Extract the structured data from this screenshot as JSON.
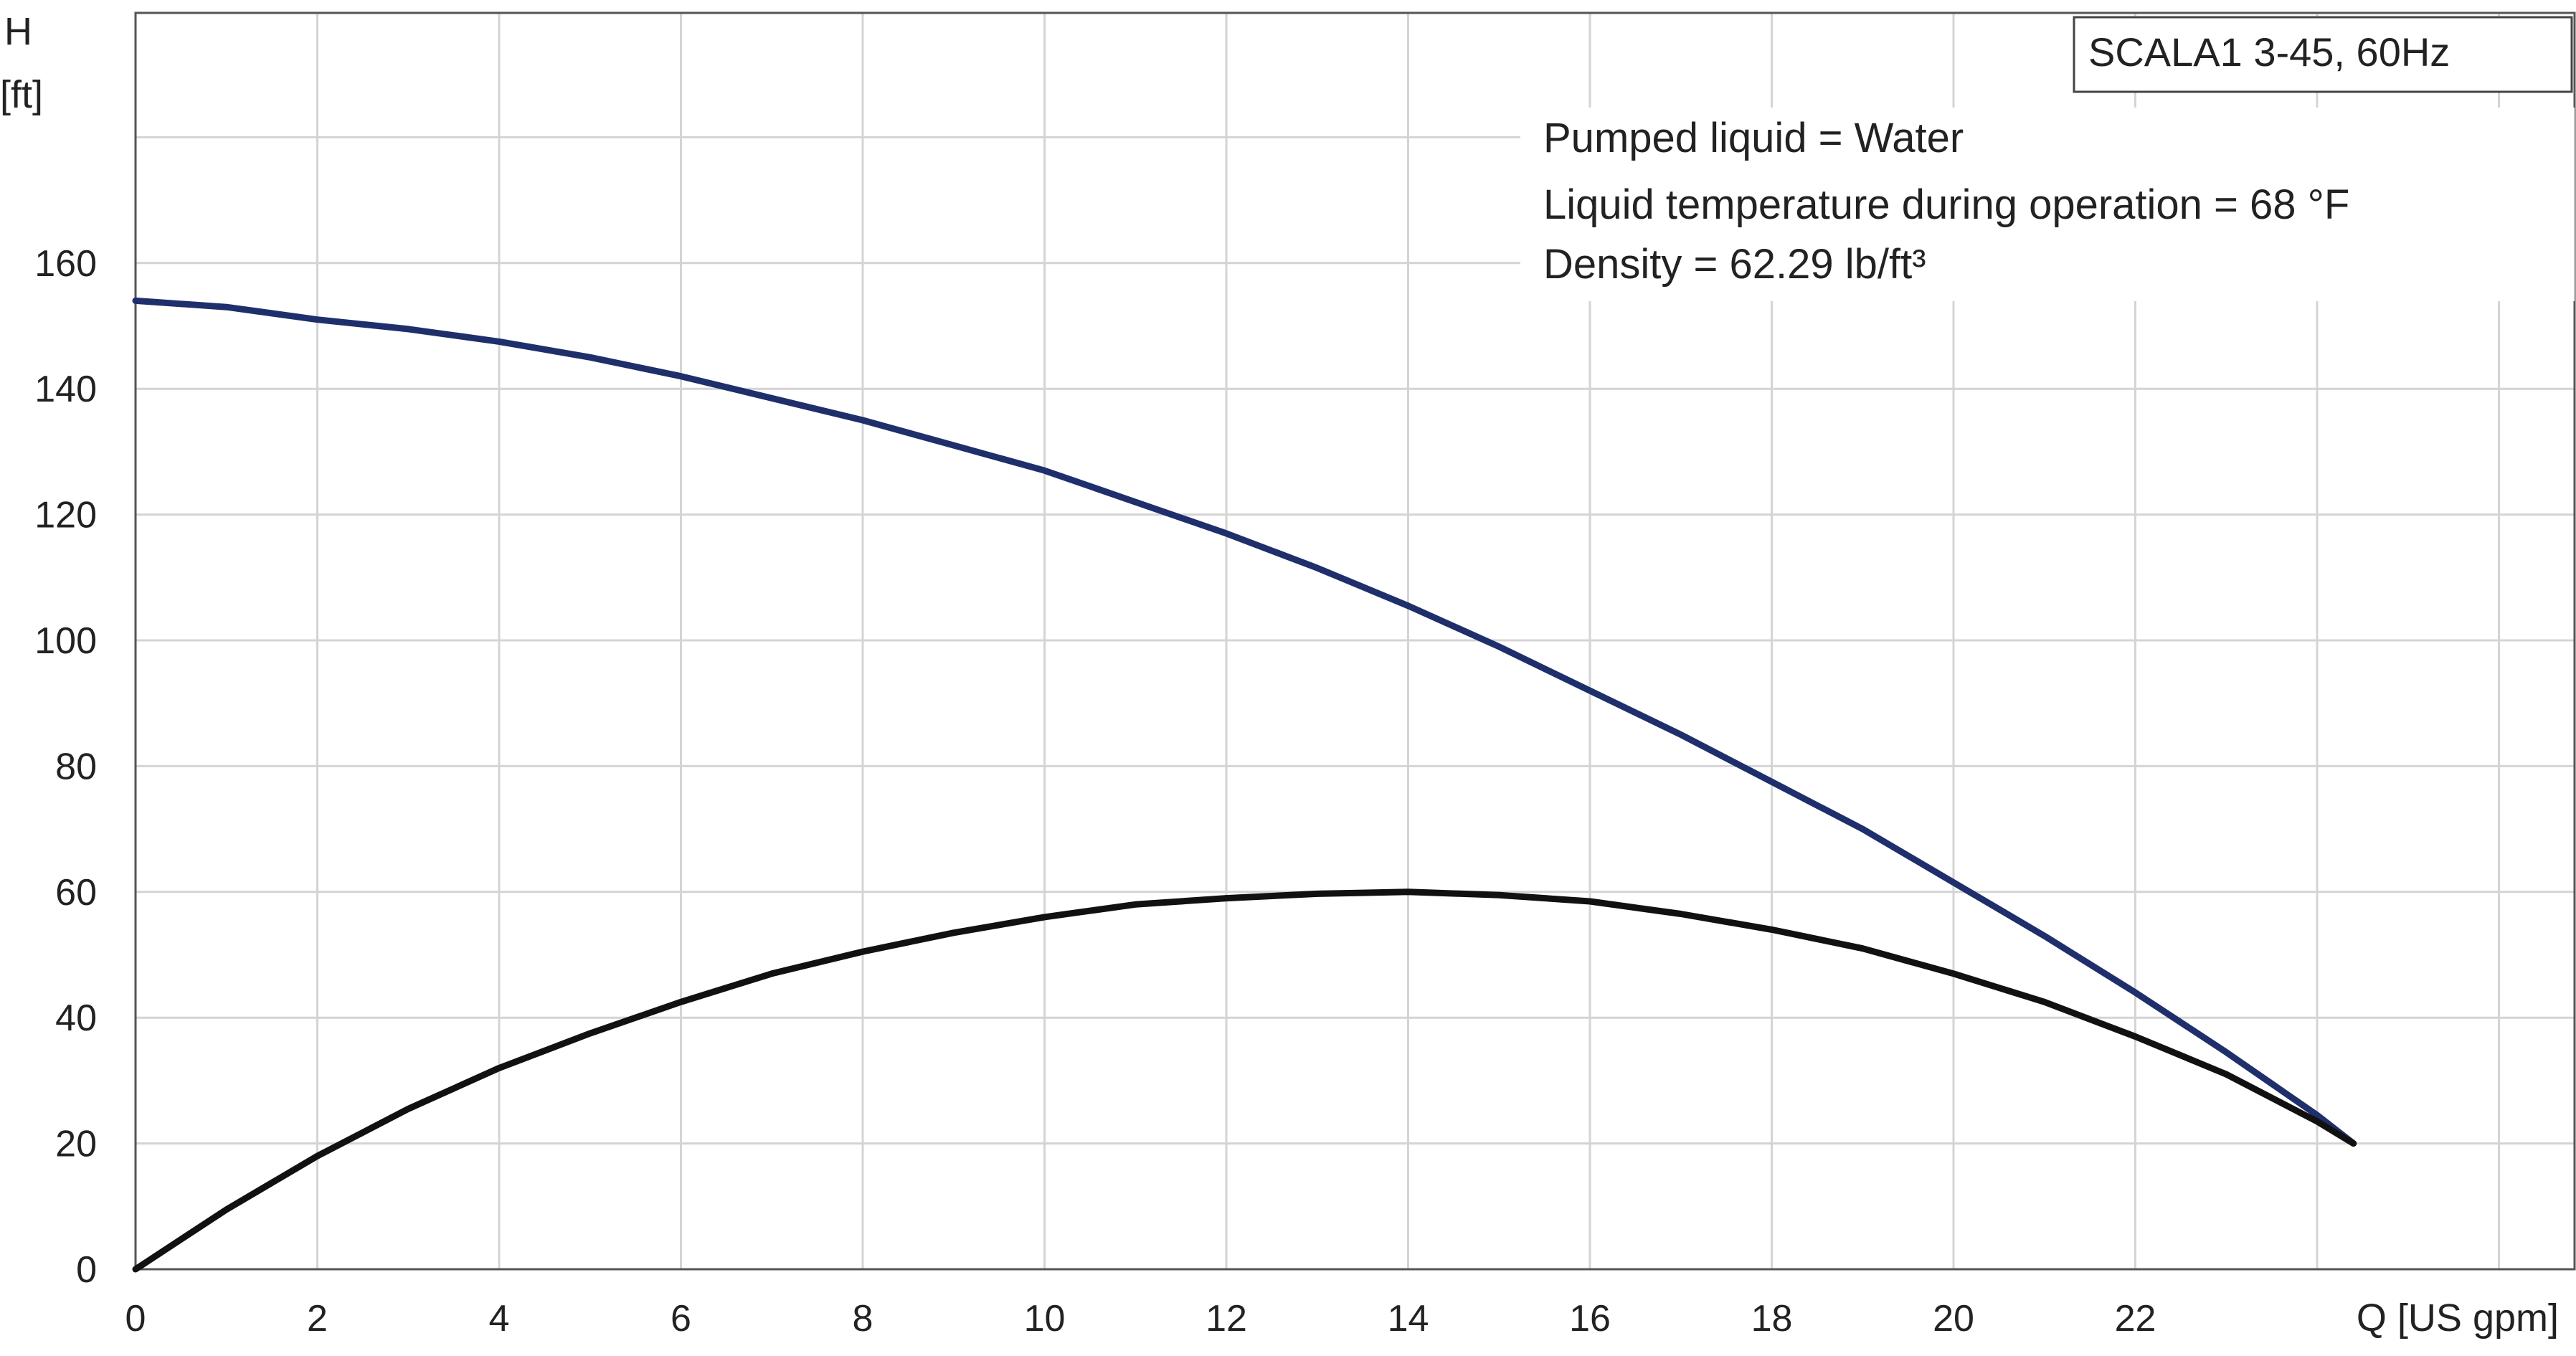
{
  "chart_data": {
    "type": "line",
    "title": "",
    "xlabel": "Q [US gpm]",
    "ylabel": "H",
    "ylabel_unit": "[ft]",
    "xlim": [
      0,
      26.8
    ],
    "ylim": [
      0,
      200
    ],
    "x_ticks": [
      0,
      2,
      4,
      6,
      8,
      10,
      12,
      14,
      16,
      18,
      20,
      22,
      24,
      26
    ],
    "x_tick_labels": [
      "0",
      "2",
      "4",
      "6",
      "8",
      "10",
      "12",
      "14",
      "16",
      "18",
      "20",
      "22"
    ],
    "y_ticks": [
      0,
      20,
      40,
      60,
      80,
      100,
      120,
      140,
      160,
      180
    ],
    "y_tick_labels": [
      "0",
      "20",
      "40",
      "60",
      "80",
      "100",
      "120",
      "140",
      "160"
    ],
    "grid": true,
    "legend_box": "SCALA1 3-45, 60Hz",
    "legend_position": "top-right",
    "info_lines": [
      "Pumped liquid = Water",
      "Liquid temperature during operation = 68 °F",
      "Density = 62.29 lb/ft³"
    ],
    "series": [
      {
        "color": "#1f2f6b",
        "x": [
          0,
          1,
          2,
          3,
          4,
          5,
          6,
          7,
          8,
          9,
          10,
          11,
          12,
          13,
          14,
          15,
          16,
          17,
          18,
          19,
          20,
          21,
          22,
          23,
          24,
          24.4
        ],
        "y": [
          154,
          153,
          151,
          149.5,
          147.5,
          145,
          142,
          138.5,
          135,
          131,
          127,
          122,
          117,
          111.5,
          105.5,
          99,
          92,
          85,
          77.5,
          70,
          61.5,
          53,
          44,
          34.5,
          24.5,
          20
        ]
      },
      {
        "color": "#111111",
        "x": [
          0,
          1,
          2,
          3,
          4,
          5,
          6,
          7,
          8,
          9,
          10,
          11,
          12,
          13,
          14,
          15,
          16,
          17,
          18,
          19,
          20,
          21,
          22,
          23,
          24,
          24.4
        ],
        "y": [
          0,
          9.5,
          18,
          25.5,
          32,
          37.5,
          42.5,
          47,
          50.5,
          53.5,
          56,
          58,
          59,
          59.7,
          60,
          59.5,
          58.5,
          56.5,
          54,
          51,
          47,
          42.5,
          37,
          31,
          23.5,
          20
        ]
      }
    ]
  }
}
